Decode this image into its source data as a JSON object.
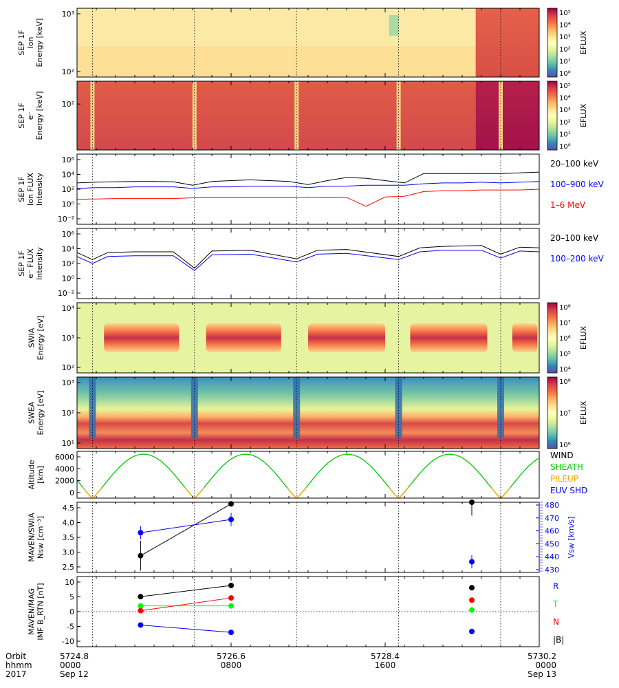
{
  "colors": {
    "black": "#000000",
    "blue": "#0000ff",
    "red": "#ff0000",
    "green": "#00cc00",
    "orange": "#ffa500",
    "lime": "#00ff00"
  },
  "colorbar_gradient": [
    "#5e4fa2",
    "#3288bd",
    "#66c2a5",
    "#abdda4",
    "#e6f598",
    "#ffffbf",
    "#fee08b",
    "#fdae61",
    "#f46d43",
    "#d53e4f",
    "#9e0142"
  ],
  "panels": [
    {
      "id": "sep-ion-spec",
      "ylabel": [
        "SEP 1F",
        "Ion",
        "Energy [keV]"
      ],
      "yticks": [
        "10³",
        "10²"
      ],
      "cbar_label": "EFLUX",
      "cbar_ticks": [
        "10⁵",
        "10⁴",
        "10³",
        "10²",
        "10¹",
        "10⁰"
      ]
    },
    {
      "id": "sep-e-spec",
      "ylabel": [
        "SEP 1F",
        "e⁻",
        "Energy [keV]"
      ],
      "yticks": [
        "10²"
      ],
      "cbar_label": "EFLUX",
      "cbar_ticks": [
        "10⁵",
        "10⁴",
        "10³",
        "10²",
        "10¹",
        "10⁰"
      ]
    },
    {
      "id": "sep-ion-flux",
      "ylabel": [
        "SEP 1F",
        "Ion FLUX",
        "Intensity"
      ],
      "yticks": [
        "10⁶",
        "10⁴",
        "10²",
        "10⁰",
        "10⁻²"
      ],
      "legend": [
        {
          "label": "20–100 keV",
          "color": "#000000"
        },
        {
          "label": "100–900 keV",
          "color": "#0000ff"
        },
        {
          "label": "1–6 MeV",
          "color": "#ff0000"
        }
      ]
    },
    {
      "id": "sep-e-flux",
      "ylabel": [
        "SEP 1F",
        "e⁻ FLUX",
        "Intensity"
      ],
      "yticks": [
        "10⁶",
        "10⁴",
        "10²",
        "10⁰",
        "10⁻²"
      ],
      "legend": [
        {
          "label": "20–100 keV",
          "color": "#000000"
        },
        {
          "label": "100–200 keV",
          "color": "#0000ff"
        }
      ]
    },
    {
      "id": "swia-spec",
      "ylabel": [
        "SWIA",
        "Energy [eV]"
      ],
      "yticks": [
        "10⁴",
        "10³",
        "10²"
      ],
      "cbar_label": "EFLUX",
      "cbar_ticks": [
        "10⁸",
        "10⁷",
        "10⁶",
        "10⁵",
        "10⁴"
      ]
    },
    {
      "id": "swea-spec",
      "ylabel": [
        "SWEA",
        "Energy [eV]"
      ],
      "yticks": [
        "10³",
        "10²",
        "10¹"
      ],
      "cbar_label": "EFLUX",
      "cbar_ticks": [
        "10⁸",
        "10⁷",
        "10⁶"
      ]
    },
    {
      "id": "altitude",
      "ylabel": [
        "Altitude",
        "[km]"
      ],
      "yticks": [
        "6000",
        "4000",
        "2000",
        "0"
      ],
      "legend": [
        {
          "label": "WIND",
          "color": "#000000"
        },
        {
          "label": "SHEATH",
          "color": "#00cc00"
        },
        {
          "label": "PILEUP",
          "color": "#ffa500"
        },
        {
          "label": "EUV SHD",
          "color": "#0000ff"
        }
      ]
    },
    {
      "id": "swia-moments",
      "ylabel": [
        "MAVEN/SWIA",
        "Nsw [cm⁻³]"
      ],
      "yticks": [
        "4.5",
        "4.0",
        "3.5",
        "3.0",
        "2.5"
      ],
      "ylabel_right": "Vsw [km/s]",
      "yticks_right": [
        "480",
        "470",
        "460",
        "450",
        "440",
        "430"
      ]
    },
    {
      "id": "mag-imf",
      "ylabel": [
        "MAVEN/MAG",
        "IMF B_RTN [nT]"
      ],
      "yticks": [
        "10",
        "5",
        "0",
        "-5",
        "-10"
      ],
      "legend": [
        {
          "label": "R",
          "color": "#0000ff"
        },
        {
          "label": "T",
          "color": "#00ff00"
        },
        {
          "label": "N",
          "color": "#ff0000"
        },
        {
          "label": "|B|",
          "color": "#000000"
        }
      ]
    }
  ],
  "xaxis": {
    "row_labels": [
      "Orbit",
      "hhmm",
      "2017"
    ],
    "ticks": [
      {
        "orbit": "5724.8",
        "hhmm": "0000",
        "date": "Sep 12"
      },
      {
        "orbit": "5726.6",
        "hhmm": "0800",
        "date": ""
      },
      {
        "orbit": "5728.4",
        "hhmm": "1600",
        "date": ""
      },
      {
        "orbit": "5730.2",
        "hhmm": "0000",
        "date": "Sep 13"
      }
    ]
  },
  "chart_data": {
    "type": "line",
    "title": "",
    "x_range_hours": [
      0,
      24
    ],
    "periapsis_times_hours": [
      0.8,
      6.1,
      11.4,
      16.7,
      22.0
    ],
    "sep_ion_flux": {
      "ylim_log10": [
        -3,
        6
      ],
      "x": [
        0,
        1,
        2,
        3,
        4,
        5,
        6,
        7,
        8,
        9,
        10,
        11,
        12,
        13,
        14,
        15,
        16,
        17,
        18,
        19,
        20,
        21,
        22,
        23,
        24
      ],
      "series": [
        {
          "name": "20–100 keV",
          "log10_values": [
            2.3,
            2.4,
            2.45,
            2.5,
            2.5,
            2.45,
            2.0,
            2.5,
            2.6,
            2.7,
            2.6,
            2.5,
            2.1,
            2.6,
            3.0,
            2.9,
            2.6,
            2.3,
            3.5,
            3.5,
            3.5,
            3.5,
            3.5,
            3.6,
            3.7
          ]
        },
        {
          "name": "100–900 keV",
          "log10_values": [
            1.6,
            1.7,
            1.7,
            1.8,
            1.8,
            1.8,
            1.6,
            1.8,
            1.8,
            1.9,
            1.9,
            1.9,
            1.7,
            1.9,
            1.9,
            2.0,
            2.0,
            2.0,
            2.2,
            2.3,
            2.3,
            2.4,
            2.3,
            2.4,
            2.5
          ]
        },
        {
          "name": "1–6 MeV",
          "log10_values": [
            0.2,
            0.25,
            0.3,
            0.3,
            0.3,
            0.3,
            0.4,
            0.4,
            0.4,
            0.4,
            0.4,
            0.4,
            0.45,
            0.4,
            0.45,
            -0.7,
            0.5,
            0.6,
            1.2,
            1.3,
            1.3,
            1.4,
            1.4,
            1.4,
            1.5
          ]
        }
      ]
    },
    "sep_e_flux": {
      "ylim_log10": [
        -3,
        6
      ],
      "x": [
        0,
        0.8,
        1.6,
        3,
        5,
        6.1,
        7,
        9,
        11.4,
        12.5,
        14,
        16.7,
        17.8,
        19,
        21,
        22.0,
        23,
        24
      ],
      "series": [
        {
          "name": "20–100 keV",
          "log10_values": [
            2.9,
            2.0,
            2.9,
            3.0,
            3.0,
            0.9,
            3.1,
            3.2,
            2.1,
            3.2,
            3.3,
            2.4,
            3.5,
            3.7,
            3.8,
            2.7,
            3.6,
            3.5
          ]
        },
        {
          "name": "100–200 keV",
          "log10_values": [
            2.4,
            1.5,
            2.4,
            2.5,
            2.5,
            0.6,
            2.6,
            2.7,
            1.7,
            2.7,
            2.8,
            2.0,
            3.0,
            3.2,
            3.2,
            2.2,
            3.1,
            3.0
          ]
        }
      ]
    },
    "altitude": {
      "ylim": [
        0,
        6500
      ],
      "peak_km": 6100,
      "ylabel": "Altitude [km]"
    },
    "swia_moments": {
      "x_hours": [
        3.3,
        8.0,
        20.5
      ],
      "nsw": [
        2.9,
        4.45,
        4.55
      ],
      "nsw_err": [
        0.45,
        0,
        0.45
      ],
      "vsw": [
        458,
        468,
        436
      ],
      "vsw_err": [
        5,
        5,
        5
      ],
      "ylim_nsw": [
        2.4,
        4.5
      ],
      "ylim_vsw": [
        428,
        481
      ]
    },
    "mag_imf": {
      "x_hours": [
        3.3,
        8.0,
        20.5
      ],
      "series": [
        {
          "name": "R",
          "values": [
            -4.2,
            -6.5,
            -6.2
          ]
        },
        {
          "name": "T",
          "values": [
            1.8,
            1.8,
            0.5
          ]
        },
        {
          "name": "N",
          "values": [
            0.3,
            4.3,
            3.6
          ]
        },
        {
          "name": "|B|",
          "values": [
            4.7,
            8.2,
            7.5
          ]
        }
      ],
      "ylim": [
        -11,
        11
      ]
    }
  }
}
